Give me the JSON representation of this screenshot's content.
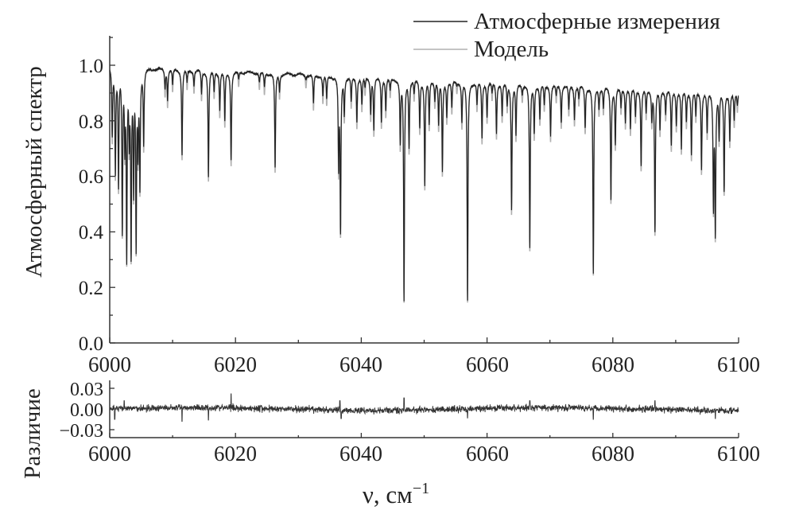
{
  "chart_data": [
    {
      "type": "line",
      "panel": "spectrum",
      "title": "",
      "xlabel": "ν, см",
      "xlabel_sup": "−1",
      "ylabel": "Атмосферный спектр",
      "xlim": [
        6000,
        6100
      ],
      "ylim": [
        0.0,
        1.1
      ],
      "xticks": [
        "6000",
        "6020",
        "6040",
        "6060",
        "6080",
        "6100"
      ],
      "yticks": [
        "0.0",
        "0.2",
        "0.4",
        "0.6",
        "0.8",
        "1.0"
      ],
      "legend": {
        "placement": "top-right",
        "entries": [
          {
            "label": "Атмосферные измерения",
            "color": "#222222"
          },
          {
            "label": "Модель",
            "color": "#b0b0b0"
          }
        ]
      },
      "continuum": {
        "start": [
          6000,
          0.995
        ],
        "end": [
          6100,
          0.9
        ]
      },
      "line_width_cm": 0.08,
      "lines_center_min": [
        [
          6000.4,
          0.75
        ],
        [
          6000.9,
          0.62
        ],
        [
          6001.4,
          0.57
        ],
        [
          6002.0,
          0.4
        ],
        [
          6002.4,
          0.72
        ],
        [
          6002.7,
          0.3
        ],
        [
          6003.1,
          0.75
        ],
        [
          6003.4,
          0.31
        ],
        [
          6003.8,
          0.55
        ],
        [
          6004.2,
          0.34
        ],
        [
          6004.5,
          0.7
        ],
        [
          6004.8,
          0.57
        ],
        [
          6005.4,
          0.72
        ],
        [
          6008.8,
          0.92
        ],
        [
          6009.2,
          0.88
        ],
        [
          6010.0,
          0.93
        ],
        [
          6011.5,
          0.68
        ],
        [
          6012.3,
          0.94
        ],
        [
          6013.4,
          0.93
        ],
        [
          6014.6,
          0.9
        ],
        [
          6015.7,
          0.6
        ],
        [
          6016.6,
          0.91
        ],
        [
          6017.5,
          0.84
        ],
        [
          6018.3,
          0.8
        ],
        [
          6019.3,
          0.66
        ],
        [
          6020.5,
          0.95
        ],
        [
          6023.8,
          0.94
        ],
        [
          6024.6,
          0.92
        ],
        [
          6026.3,
          0.63
        ],
        [
          6027.0,
          0.91
        ],
        [
          6031.2,
          0.95
        ],
        [
          6032.4,
          0.86
        ],
        [
          6033.9,
          0.89
        ],
        [
          6034.5,
          0.88
        ],
        [
          6036.4,
          0.63
        ],
        [
          6036.7,
          0.4
        ],
        [
          6037.3,
          0.83
        ],
        [
          6038.4,
          0.87
        ],
        [
          6039.3,
          0.8
        ],
        [
          6040.1,
          0.86
        ],
        [
          6040.6,
          0.92
        ],
        [
          6041.5,
          0.83
        ],
        [
          6042.0,
          0.77
        ],
        [
          6043.2,
          0.8
        ],
        [
          6043.9,
          0.84
        ],
        [
          6044.6,
          0.91
        ],
        [
          6046.2,
          0.72
        ],
        [
          6046.8,
          0.15
        ],
        [
          6047.6,
          0.71
        ],
        [
          6048.4,
          0.9
        ],
        [
          6049.3,
          0.78
        ],
        [
          6050.1,
          0.57
        ],
        [
          6050.8,
          0.79
        ],
        [
          6051.7,
          0.88
        ],
        [
          6052.3,
          0.79
        ],
        [
          6052.9,
          0.62
        ],
        [
          6053.6,
          0.82
        ],
        [
          6054.4,
          0.85
        ],
        [
          6055.2,
          0.93
        ],
        [
          6056.0,
          0.8
        ],
        [
          6056.9,
          0.15
        ],
        [
          6058.4,
          0.86
        ],
        [
          6059.2,
          0.74
        ],
        [
          6060.0,
          0.82
        ],
        [
          6060.8,
          0.9
        ],
        [
          6061.5,
          0.76
        ],
        [
          6062.4,
          0.82
        ],
        [
          6063.2,
          0.86
        ],
        [
          6063.9,
          0.48
        ],
        [
          6064.6,
          0.75
        ],
        [
          6065.6,
          0.9
        ],
        [
          6066.8,
          0.34
        ],
        [
          6067.5,
          0.76
        ],
        [
          6068.4,
          0.81
        ],
        [
          6069.1,
          0.86
        ],
        [
          6070.1,
          0.75
        ],
        [
          6071.0,
          0.89
        ],
        [
          6071.8,
          0.8
        ],
        [
          6073.0,
          0.84
        ],
        [
          6073.9,
          0.81
        ],
        [
          6074.6,
          0.88
        ],
        [
          6075.6,
          0.78
        ],
        [
          6076.9,
          0.25
        ],
        [
          6077.8,
          0.85
        ],
        [
          6078.5,
          0.85
        ],
        [
          6079.7,
          0.52
        ],
        [
          6080.4,
          0.72
        ],
        [
          6081.3,
          0.85
        ],
        [
          6082.0,
          0.8
        ],
        [
          6082.8,
          0.77
        ],
        [
          6083.6,
          0.82
        ],
        [
          6084.5,
          0.64
        ],
        [
          6085.3,
          0.83
        ],
        [
          6086.2,
          0.81
        ],
        [
          6086.7,
          0.4
        ],
        [
          6087.5,
          0.77
        ],
        [
          6088.4,
          0.83
        ],
        [
          6089.3,
          0.71
        ],
        [
          6090.1,
          0.79
        ],
        [
          6090.9,
          0.7
        ],
        [
          6091.7,
          0.8
        ],
        [
          6092.5,
          0.68
        ],
        [
          6093.2,
          0.82
        ],
        [
          6094.1,
          0.63
        ],
        [
          6095.0,
          0.76
        ],
        [
          6096.0,
          0.49
        ],
        [
          6096.3,
          0.39
        ],
        [
          6096.9,
          0.74
        ],
        [
          6097.7,
          0.55
        ],
        [
          6098.6,
          0.73
        ],
        [
          6099.3,
          0.8
        ],
        [
          6099.8,
          0.86
        ]
      ]
    },
    {
      "type": "line",
      "panel": "residual",
      "ylabel": "Различие",
      "xlim": [
        6000,
        6100
      ],
      "ylim": [
        -0.04,
        0.04
      ],
      "xticks": [
        "6000",
        "6020",
        "6040",
        "6060",
        "6080",
        "6100"
      ],
      "yticks": [
        "0.03",
        "0.00",
        "−0.03"
      ],
      "noise_std": 0.0035,
      "spikes": [
        [
          6000.8,
          -0.015
        ],
        [
          6002.3,
          0.012
        ],
        [
          6011.5,
          -0.018
        ],
        [
          6015.7,
          -0.016
        ],
        [
          6019.3,
          0.022
        ],
        [
          6036.6,
          0.012
        ],
        [
          6036.8,
          -0.014
        ],
        [
          6046.8,
          0.016
        ],
        [
          6056.9,
          -0.013
        ],
        [
          6066.8,
          0.012
        ],
        [
          6076.9,
          -0.015
        ],
        [
          6086.7,
          0.012
        ],
        [
          6096.3,
          -0.014
        ]
      ]
    }
  ]
}
